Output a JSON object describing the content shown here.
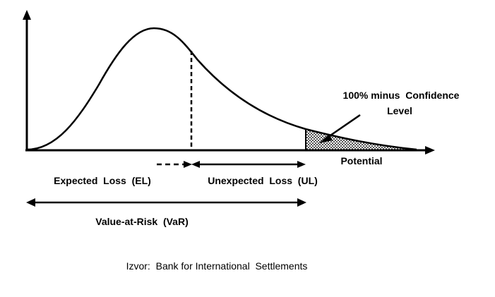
{
  "diagram": {
    "labels": {
      "confidence_line1": "100% minus  Confidence",
      "confidence_line2": "Level",
      "potential": "Potential",
      "expected_loss": "Expected  Loss  (EL)",
      "unexpected_loss": "Unexpected  Loss  (UL)",
      "var": "Value-at-Risk  (VaR)"
    },
    "source": "Izvor:  Bank for International  Settlements",
    "colors": {
      "ink": "#000000",
      "background": "#ffffff",
      "tail_fill": "#9a9a9a"
    }
  }
}
